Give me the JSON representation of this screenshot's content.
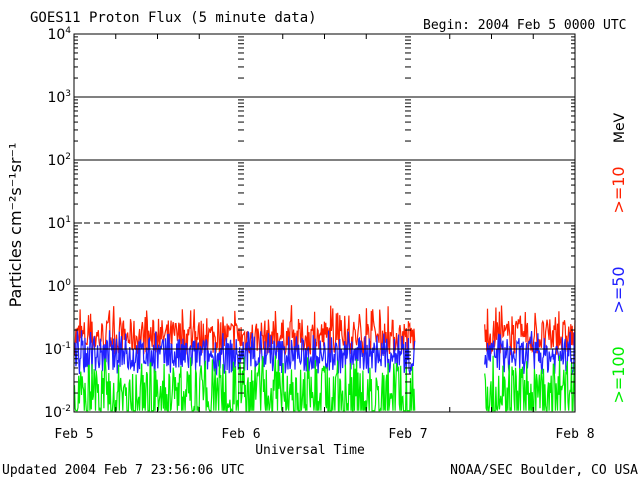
{
  "chart_data": {
    "type": "line",
    "title": "GOES11 Proton Flux (5 minute data)",
    "begin_label": "Begin: 2004 Feb 5 0000 UTC",
    "xlabel": "Universal Time",
    "ylabel": "Particles cm⁻²s⁻¹sr⁻¹",
    "y_scale": "log",
    "ylim": [
      0.01,
      10000
    ],
    "y_ticks": [
      {
        "value": 0.01,
        "label_base": "10",
        "label_exp": "-2"
      },
      {
        "value": 0.1,
        "label_base": "10",
        "label_exp": "-1"
      },
      {
        "value": 1,
        "label_base": "10",
        "label_exp": "0"
      },
      {
        "value": 10,
        "label_base": "10",
        "label_exp": "1"
      },
      {
        "value": 100,
        "label_base": "10",
        "label_exp": "2"
      },
      {
        "value": 1000,
        "label_base": "10",
        "label_exp": "3"
      },
      {
        "value": 10000,
        "label_base": "10",
        "label_exp": "4"
      }
    ],
    "xlim": [
      "2004-02-05T00:00",
      "2004-02-08T00:00"
    ],
    "x_ticks": [
      {
        "value": "2004-02-05",
        "label": "Feb 5"
      },
      {
        "value": "2004-02-06",
        "label": "Feb 6"
      },
      {
        "value": "2004-02-07",
        "label": "Feb 7"
      },
      {
        "value": "2004-02-08",
        "label": "Feb 8"
      }
    ],
    "threshold_lines": [
      {
        "value": 10,
        "style": "dashed"
      },
      {
        "value": 0.1,
        "style": "solid"
      },
      {
        "value": 1,
        "style": "solid"
      },
      {
        "value": 100,
        "style": "solid"
      },
      {
        "value": 1000,
        "style": "solid"
      }
    ],
    "data_gap": [
      "2004-02-07T01:00",
      "2004-02-07T11:00"
    ],
    "legend_unit": "MeV",
    "series": [
      {
        "name": ">=10",
        "color": "#ff2000",
        "typical_range": [
          0.08,
          0.3
        ],
        "peak": 0.5
      },
      {
        "name": ">=50",
        "color": "#2020ff",
        "typical_range": [
          0.04,
          0.15
        ],
        "peak": 0.2
      },
      {
        "name": ">=100",
        "color": "#00ee00",
        "typical_range": [
          0.011,
          0.06
        ],
        "peak": 0.08
      }
    ]
  },
  "footer": {
    "updated": "Updated 2004 Feb  7 23:56:06 UTC",
    "credit": "NOAA/SEC Boulder, CO USA"
  },
  "colors": {
    "axis": "#000000",
    "background": "#ffffff"
  }
}
